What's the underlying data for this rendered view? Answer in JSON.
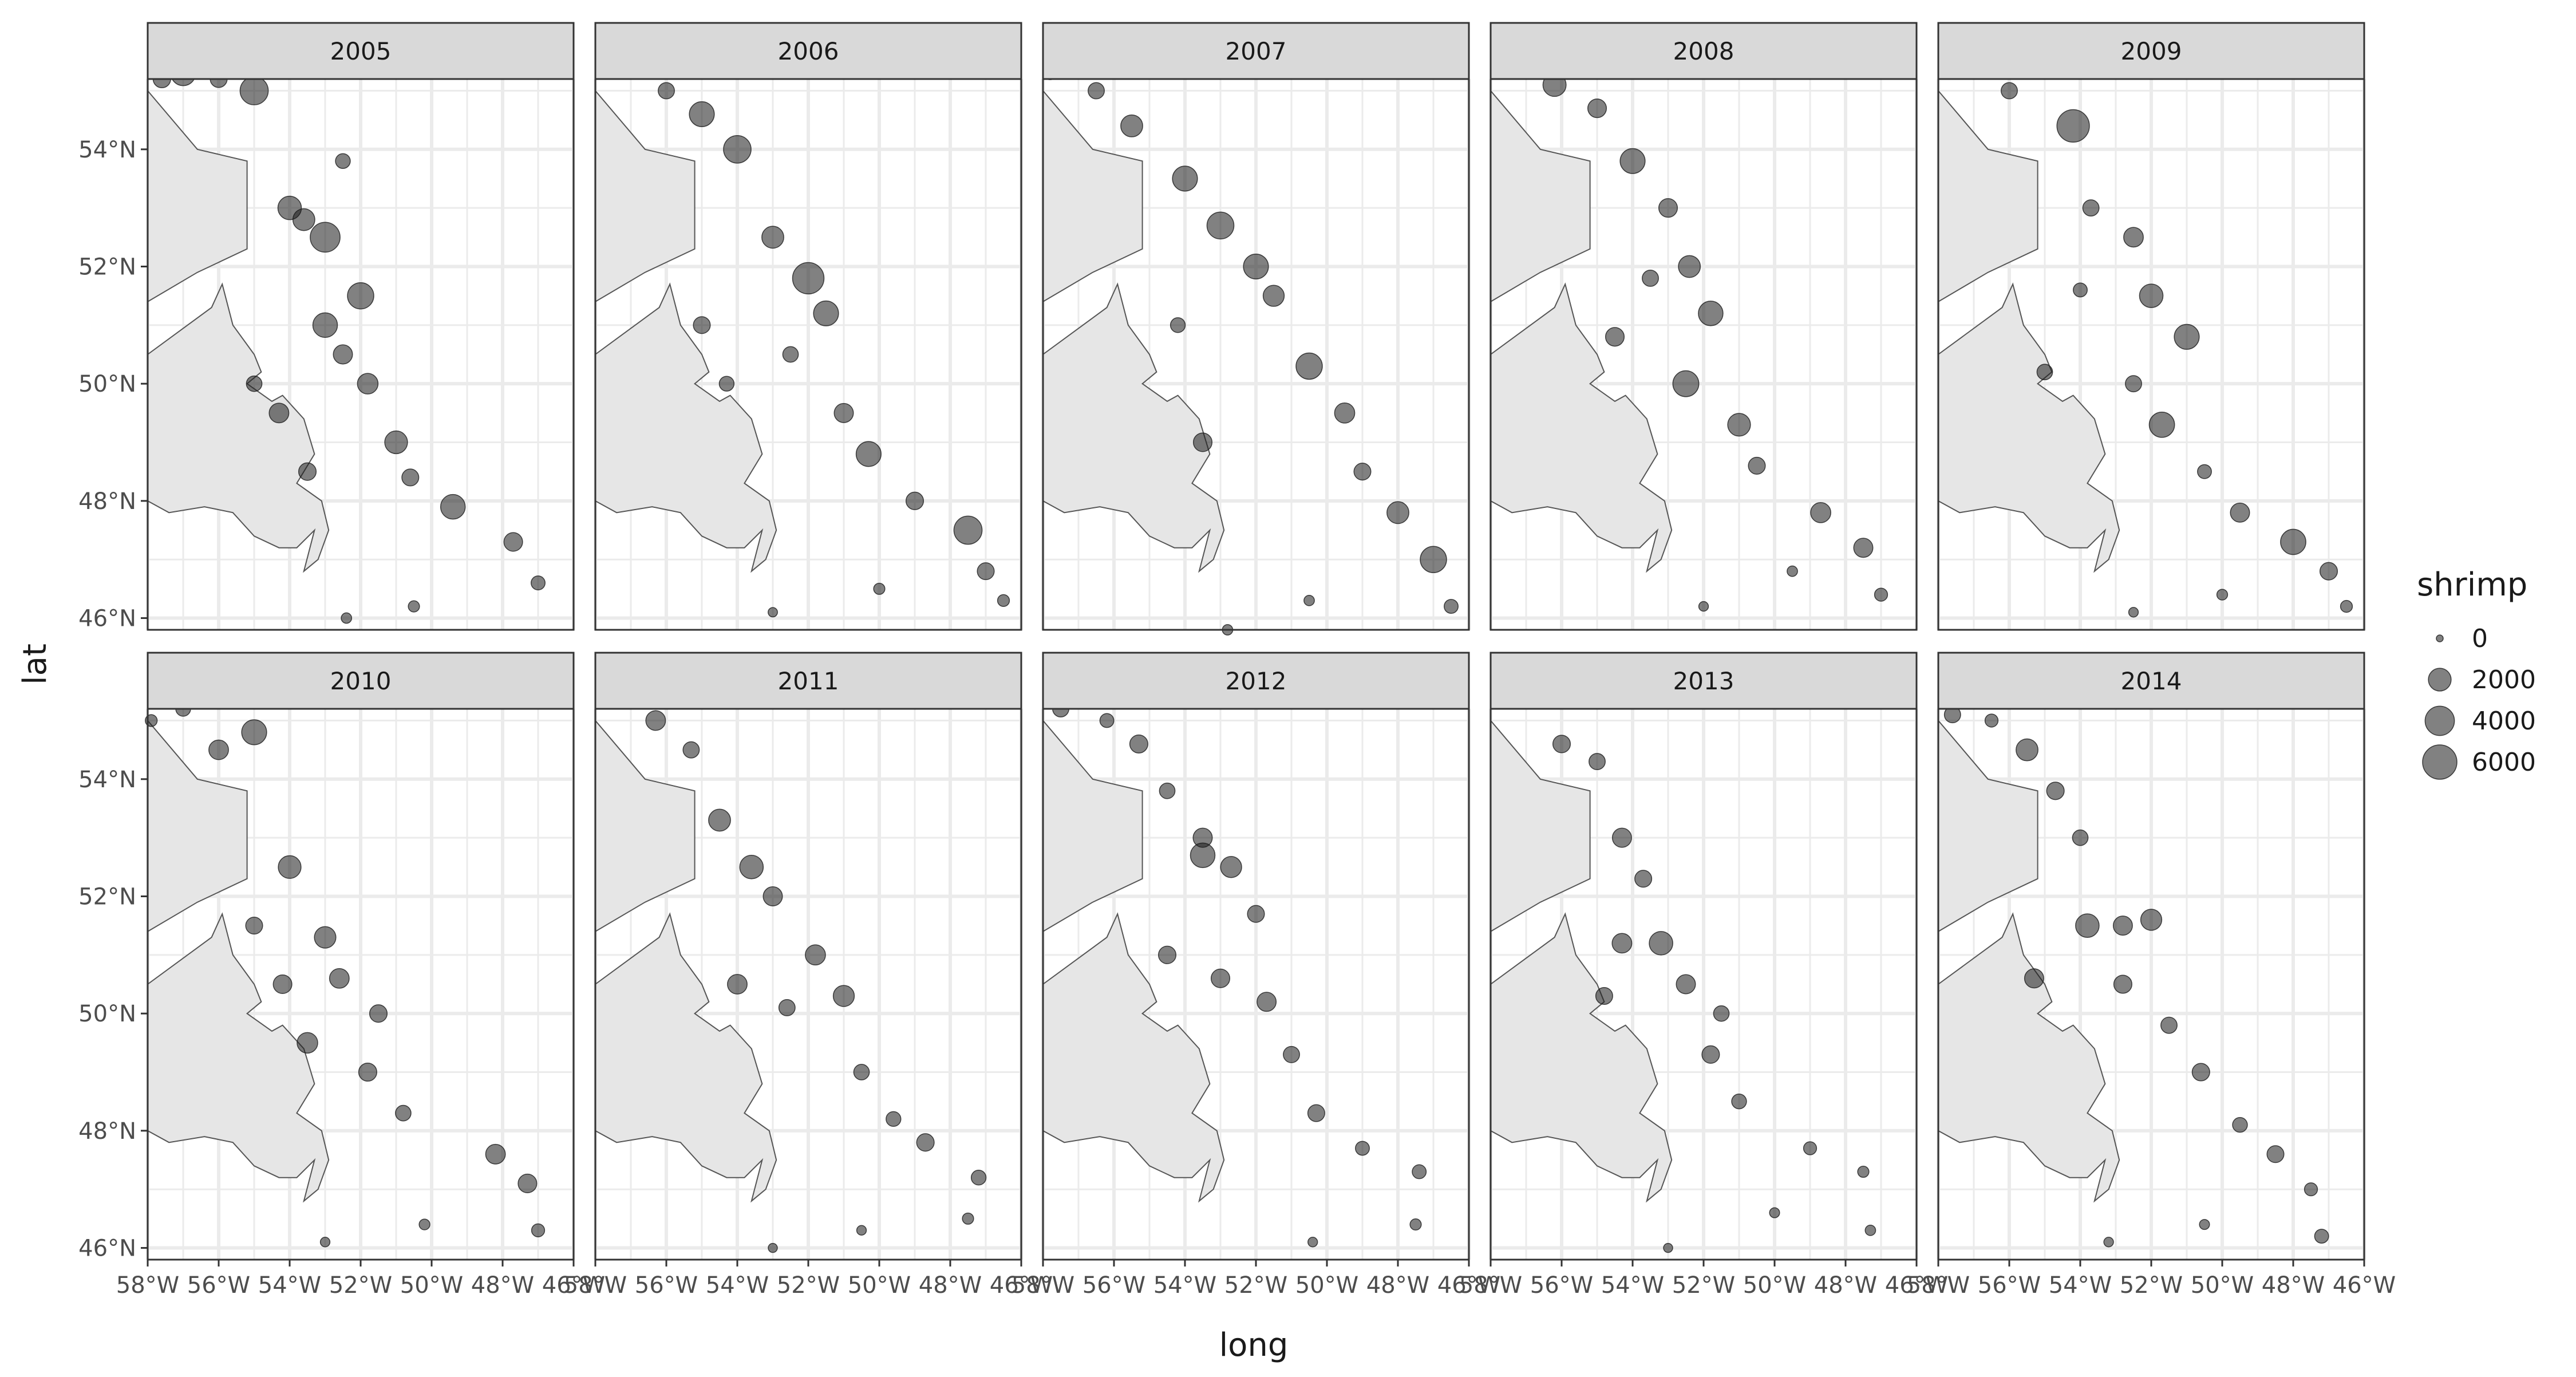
{
  "chart_data": {
    "type": "scatter",
    "xlabel": "long",
    "ylabel": "lat",
    "xlim": [
      -58,
      -46
    ],
    "ylim": [
      45.8,
      55.2
    ],
    "x_ticks": [
      -58,
      -56,
      -54,
      -52,
      -50,
      -48,
      -46
    ],
    "x_tick_labels": [
      "58°W",
      "56°W",
      "54°W",
      "52°W",
      "50°W",
      "48°W",
      "46°W"
    ],
    "y_ticks": [
      46,
      48,
      50,
      52,
      54
    ],
    "y_tick_labels": [
      "46°N",
      "48°N",
      "50°N",
      "52°N",
      "54°N"
    ],
    "grid": true,
    "facet_by": "year",
    "panels": [
      {
        "label": "2005",
        "points": [
          [
            -57.6,
            55.2,
            900
          ],
          [
            -57,
            55.3,
            2600
          ],
          [
            -56,
            55.2,
            800
          ],
          [
            -55,
            55,
            3600
          ],
          [
            -54,
            53,
            2200
          ],
          [
            -53.6,
            52.8,
            1800
          ],
          [
            -53,
            52.5,
            4200
          ],
          [
            -52,
            51.5,
            3000
          ],
          [
            -53,
            51,
            2500
          ],
          [
            -52.5,
            50.5,
            1200
          ],
          [
            -51.8,
            50,
            1500
          ],
          [
            -51,
            49,
            2000
          ],
          [
            -50.6,
            48.4,
            800
          ],
          [
            -49.4,
            47.9,
            2500
          ],
          [
            -47.7,
            47.3,
            1100
          ],
          [
            -47,
            46.6,
            400
          ],
          [
            -50.5,
            46.2,
            150
          ],
          [
            -52.4,
            46,
            100
          ],
          [
            -55,
            50,
            600
          ],
          [
            -54.3,
            49.5,
            1300
          ],
          [
            -53.5,
            48.5,
            900
          ],
          [
            -52.5,
            53.8,
            500
          ]
        ]
      },
      {
        "label": "2006",
        "points": [
          [
            -57.3,
            55.3,
            100
          ],
          [
            -56,
            55,
            700
          ],
          [
            -55,
            54.6,
            2600
          ],
          [
            -54,
            54,
            3400
          ],
          [
            -53,
            52.5,
            1800
          ],
          [
            -52,
            51.8,
            4800
          ],
          [
            -51.5,
            51.2,
            2600
          ],
          [
            -52.5,
            50.5,
            600
          ],
          [
            -51,
            49.5,
            1200
          ],
          [
            -50.3,
            48.8,
            2600
          ],
          [
            -49,
            48,
            900
          ],
          [
            -47.5,
            47.5,
            3600
          ],
          [
            -47,
            46.8,
            800
          ],
          [
            -46.5,
            46.3,
            200
          ],
          [
            -50,
            46.5,
            150
          ],
          [
            -53,
            46.1,
            50
          ],
          [
            -55,
            51,
            800
          ],
          [
            -54.3,
            50,
            500
          ]
        ]
      },
      {
        "label": "2007",
        "points": [
          [
            -57.8,
            55.3,
            300
          ],
          [
            -56.5,
            55,
            700
          ],
          [
            -55.5,
            54.4,
            1800
          ],
          [
            -54,
            53.5,
            2600
          ],
          [
            -53,
            52.7,
            3200
          ],
          [
            -52,
            52,
            2600
          ],
          [
            -51.5,
            51.5,
            1600
          ],
          [
            -50.5,
            50.3,
            3000
          ],
          [
            -49.5,
            49.5,
            1400
          ],
          [
            -49,
            48.5,
            800
          ],
          [
            -48,
            47.8,
            1800
          ],
          [
            -47,
            47,
            3000
          ],
          [
            -46.5,
            46.2,
            400
          ],
          [
            -50.5,
            46.3,
            100
          ],
          [
            -52.8,
            45.8,
            100
          ],
          [
            -53.5,
            49,
            1100
          ],
          [
            -54.2,
            51,
            500
          ]
        ]
      },
      {
        "label": "2008",
        "points": [
          [
            -57.5,
            55.3,
            100
          ],
          [
            -56.2,
            55.1,
            2100
          ],
          [
            -55,
            54.7,
            1100
          ],
          [
            -54,
            53.8,
            2600
          ],
          [
            -53,
            53,
            1100
          ],
          [
            -52.4,
            52,
            1800
          ],
          [
            -51.8,
            51.2,
            2500
          ],
          [
            -52.5,
            50,
            2900
          ],
          [
            -51,
            49.3,
            2000
          ],
          [
            -50.5,
            48.6,
            800
          ],
          [
            -48.7,
            47.8,
            1400
          ],
          [
            -47.5,
            47.2,
            1200
          ],
          [
            -47,
            46.4,
            300
          ],
          [
            -49.5,
            46.8,
            100
          ],
          [
            -52,
            46.2,
            60
          ],
          [
            -54.5,
            50.8,
            1100
          ],
          [
            -53.5,
            51.8,
            700
          ]
        ]
      },
      {
        "label": "2009",
        "points": [
          [
            -57.2,
            55.3,
            200
          ],
          [
            -56,
            55,
            700
          ],
          [
            -54.2,
            54.4,
            5200
          ],
          [
            -53.7,
            53,
            700
          ],
          [
            -52.5,
            52.5,
            1300
          ],
          [
            -52,
            51.5,
            2200
          ],
          [
            -51,
            50.8,
            2600
          ],
          [
            -52.5,
            50,
            700
          ],
          [
            -51.7,
            49.3,
            2700
          ],
          [
            -50.5,
            48.5,
            400
          ],
          [
            -49.5,
            47.8,
            1200
          ],
          [
            -48,
            47.3,
            2700
          ],
          [
            -47,
            46.8,
            900
          ],
          [
            -46.5,
            46.2,
            200
          ],
          [
            -50,
            46.4,
            120
          ],
          [
            -52.5,
            46.1,
            60
          ],
          [
            -55,
            50.2,
            600
          ],
          [
            -54,
            51.6,
            400
          ]
        ]
      },
      {
        "label": "2010",
        "points": [
          [
            -57.9,
            55,
            200
          ],
          [
            -57,
            55.2,
            500
          ],
          [
            -56,
            54.5,
            1300
          ],
          [
            -55,
            54.8,
            2600
          ],
          [
            -54,
            52.5,
            2000
          ],
          [
            -53,
            51.3,
            1700
          ],
          [
            -52.6,
            50.6,
            1300
          ],
          [
            -54.2,
            50.5,
            1100
          ],
          [
            -51.5,
            50,
            900
          ],
          [
            -51.8,
            49,
            1000
          ],
          [
            -50.8,
            48.3,
            600
          ],
          [
            -48.2,
            47.6,
            1300
          ],
          [
            -47.3,
            47.1,
            1100
          ],
          [
            -47,
            46.3,
            300
          ],
          [
            -50.2,
            46.4,
            120
          ],
          [
            -53,
            46.1,
            60
          ],
          [
            -55,
            51.5,
            800
          ],
          [
            -53.5,
            49.5,
            1500
          ]
        ]
      },
      {
        "label": "2011",
        "points": [
          [
            -57.5,
            55.3,
            100
          ],
          [
            -56.3,
            55,
            1300
          ],
          [
            -55.3,
            54.5,
            700
          ],
          [
            -54.5,
            53.3,
            1800
          ],
          [
            -53.6,
            52.5,
            2200
          ],
          [
            -53,
            52,
            1200
          ],
          [
            -51.8,
            51,
            1400
          ],
          [
            -51,
            50.3,
            1600
          ],
          [
            -54,
            50.5,
            1300
          ],
          [
            -50.5,
            49,
            600
          ],
          [
            -49.6,
            48.2,
            500
          ],
          [
            -48.7,
            47.8,
            900
          ],
          [
            -47.2,
            47.2,
            500
          ],
          [
            -47.5,
            46.5,
            150
          ],
          [
            -50.5,
            46.3,
            60
          ],
          [
            -53,
            46,
            40
          ],
          [
            -52.6,
            50.1,
            700
          ]
        ]
      },
      {
        "label": "2012",
        "points": [
          [
            -57.5,
            55.2,
            700
          ],
          [
            -56.2,
            55,
            400
          ],
          [
            -55.3,
            54.6,
            1000
          ],
          [
            -54.5,
            53.8,
            600
          ],
          [
            -53.5,
            53,
            1200
          ],
          [
            -52.7,
            52.5,
            1600
          ],
          [
            -53.5,
            52.7,
            2500
          ],
          [
            -52,
            51.7,
            800
          ],
          [
            -53,
            50.6,
            1100
          ],
          [
            -51.7,
            50.2,
            1200
          ],
          [
            -51,
            49.3,
            700
          ],
          [
            -50.3,
            48.3,
            800
          ],
          [
            -49,
            47.7,
            400
          ],
          [
            -47.4,
            47.3,
            400
          ],
          [
            -47.5,
            46.4,
            150
          ],
          [
            -50.4,
            46.1,
            60
          ],
          [
            -54.5,
            51,
            900
          ]
        ]
      },
      {
        "label": "2013",
        "points": [
          [
            -57.5,
            55.3,
            100
          ],
          [
            -56,
            54.6,
            900
          ],
          [
            -55,
            54.3,
            700
          ],
          [
            -54.3,
            53,
            1200
          ],
          [
            -53.7,
            52.3,
            800
          ],
          [
            -53.2,
            51.2,
            2200
          ],
          [
            -52.5,
            50.5,
            1200
          ],
          [
            -51.5,
            50,
            600
          ],
          [
            -54.8,
            50.3,
            800
          ],
          [
            -51.8,
            49.3,
            900
          ],
          [
            -51,
            48.5,
            500
          ],
          [
            -49,
            47.7,
            300
          ],
          [
            -47.5,
            47.3,
            150
          ],
          [
            -47.3,
            46.3,
            100
          ],
          [
            -50,
            46.6,
            80
          ],
          [
            -53,
            46,
            40
          ],
          [
            -54.3,
            51.2,
            1300
          ]
        ]
      },
      {
        "label": "2014",
        "points": [
          [
            -57.6,
            55.1,
            700
          ],
          [
            -56.5,
            55,
            300
          ],
          [
            -55.5,
            54.5,
            1800
          ],
          [
            -54.7,
            53.8,
            900
          ],
          [
            -54,
            53,
            600
          ],
          [
            -53.8,
            51.5,
            2200
          ],
          [
            -52.8,
            51.5,
            1200
          ],
          [
            -52,
            51.6,
            1600
          ],
          [
            -52.8,
            50.5,
            1000
          ],
          [
            -51.5,
            49.8,
            700
          ],
          [
            -50.6,
            49,
            900
          ],
          [
            -49.5,
            48.1,
            500
          ],
          [
            -48.5,
            47.6,
            800
          ],
          [
            -47.5,
            47,
            300
          ],
          [
            -47.2,
            46.2,
            400
          ],
          [
            -50.5,
            46.4,
            80
          ],
          [
            -53.2,
            46.1,
            60
          ],
          [
            -55.3,
            50.6,
            1200
          ]
        ]
      }
    ],
    "size_legend": {
      "title": "shrimp",
      "breaks": [
        0,
        2000,
        4000,
        6000
      ],
      "labels": [
        "0",
        "2000",
        "4000",
        "6000"
      ]
    },
    "colors": {
      "point_fill": "#1a1a1a",
      "land_fill": "#e6e6e6",
      "land_stroke": "#555555",
      "strip_fill": "#d9d9d9",
      "grid": "#ebebeb",
      "panel_border": "#333333"
    }
  }
}
